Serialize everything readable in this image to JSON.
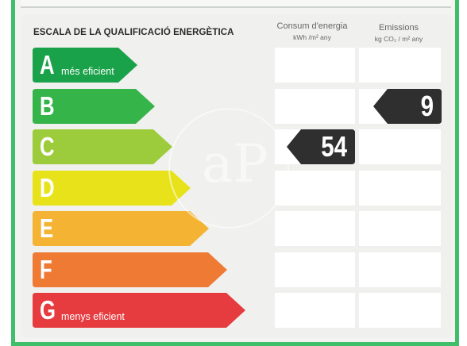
{
  "heading": "ESCALA DE LA QUALIFICACIÓ ENERGÈTICA",
  "columns": {
    "consum": {
      "title": "Consum d'energia",
      "unit": "kWh /m² any"
    },
    "emissions": {
      "title": "Emissions",
      "unit": "kg CO₂ / m² any"
    }
  },
  "ratings": [
    {
      "letter": "A",
      "label": "més eficient",
      "color": "#1aa24a"
    },
    {
      "letter": "B",
      "label": "",
      "color": "#35b44a"
    },
    {
      "letter": "C",
      "label": "",
      "color": "#9ccb3b"
    },
    {
      "letter": "D",
      "label": "",
      "color": "#e8e21a"
    },
    {
      "letter": "E",
      "label": "",
      "color": "#f5b333"
    },
    {
      "letter": "F",
      "label": "",
      "color": "#ee7a34"
    },
    {
      "letter": "G",
      "label": "menys eficient",
      "color": "#e63c3f"
    }
  ],
  "consum_value": {
    "value": "54",
    "rating": "C"
  },
  "emissions_value": {
    "value": "9",
    "rating": "B"
  },
  "watermark": "aP"
}
